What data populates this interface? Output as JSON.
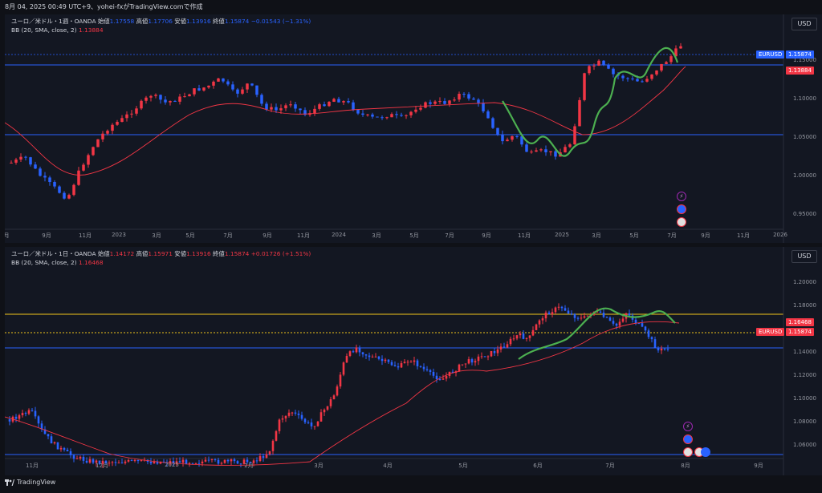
{
  "header": {
    "text": "8月 04, 2025 00:49 UTC+9、yohei-fxがTradingView.comで作成"
  },
  "footer": {
    "logo_text": "TradingView"
  },
  "colors": {
    "up": "#f23645",
    "down": "#2962ff",
    "bb": "#f23645",
    "hline_blue": "#2962ff",
    "hline_yellow": "#f0c419",
    "green": "#4caf50"
  },
  "pane1": {
    "usd_label": "USD",
    "symbol": "ユーロ／米ドル・1週・OANDA",
    "open_label": "始値",
    "open": "1.17558",
    "high_label": "高値",
    "high": "1.17706",
    "low_label": "安値",
    "low": "1.13916",
    "close_label": "終値",
    "close": "1.15874",
    "change": "−0.01543 (−1.31%)",
    "bb_label": "BB (20, SMA, close, 2)",
    "bb_value": "1.13884",
    "price_labels": [
      "1.15000",
      "1.10000",
      "1.05000",
      "1.00000",
      "0.95000"
    ],
    "tag_symbol": "EURUSD",
    "tag_price": "1.15874",
    "tag_bb": "1.13884",
    "x_labels": [
      "月",
      "9月",
      "11月",
      "2023",
      "3月",
      "5月",
      "7月",
      "9月",
      "11月",
      "2024",
      "3月",
      "5月",
      "7月",
      "9月",
      "11月",
      "2025",
      "3月",
      "5月",
      "7月",
      "9月",
      "11月",
      "2026"
    ]
  },
  "pane2": {
    "usd_label": "USD",
    "symbol": "ユーロ／米ドル・1日・OANDA",
    "open_label": "始値",
    "open": "1.14172",
    "high_label": "高値",
    "high": "1.15971",
    "low_label": "安値",
    "low": "1.13916",
    "close_label": "終値",
    "close": "1.15874",
    "change": "+0.01726 (+1.51%)",
    "bb_label": "BB (20, SMA, close, 2)",
    "bb_value": "1.16468",
    "price_labels": [
      "1.20000",
      "1.18000",
      "1.14000",
      "1.12000",
      "1.10000",
      "1.08000",
      "1.06000"
    ],
    "tag_symbol": "EURUSD",
    "tag_price": "1.15874",
    "tag_bb": "1.16468",
    "x_labels": [
      "11月",
      "12月",
      "2025",
      "2月",
      "3月",
      "4月",
      "5月",
      "6月",
      "7月",
      "8月",
      "9月"
    ]
  }
}
